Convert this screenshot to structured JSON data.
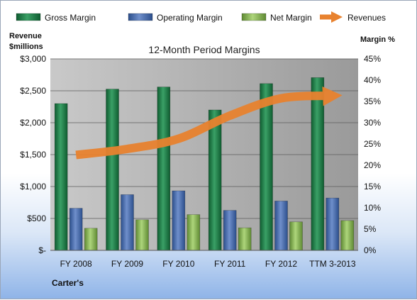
{
  "chart_data": {
    "type": "bar",
    "title": "12-Month Period Margins",
    "categories": [
      "FY 2008",
      "FY 2009",
      "FY 2010",
      "FY 2011",
      "FY 2012",
      "TTM 3-2013"
    ],
    "series": [
      {
        "name": "Gross Margin",
        "axis": "right",
        "values": [
          34.5,
          37.9,
          38.4,
          33.0,
          39.2,
          40.6
        ]
      },
      {
        "name": "Operating Margin",
        "axis": "right",
        "values": [
          9.9,
          13.1,
          14.0,
          9.4,
          11.6,
          12.3
        ]
      },
      {
        "name": "Net Margin",
        "axis": "right",
        "values": [
          5.2,
          7.2,
          8.4,
          5.3,
          6.7,
          7.0
        ]
      },
      {
        "name": "Revenues",
        "axis": "left",
        "type": "line",
        "values": [
          1495,
          1589,
          1749,
          2110,
          2382,
          2422
        ]
      }
    ],
    "y_left": {
      "label_line1": "Revenue",
      "label_line2": "$millions",
      "ylim": [
        0,
        3000
      ],
      "ticks": [
        0,
        500,
        1000,
        1500,
        2000,
        2500,
        3000
      ],
      "tick_labels": [
        "$-",
        "$500",
        "$1,000",
        "$1,500",
        "$2,000",
        "$2,500",
        "$3,000"
      ]
    },
    "y_right": {
      "label": "Margin %",
      "ylim": [
        0,
        45
      ],
      "ticks": [
        0,
        5,
        10,
        15,
        20,
        25,
        30,
        35,
        40,
        45
      ],
      "tick_labels": [
        "0%",
        "5%",
        "10%",
        "15%",
        "20%",
        "25%",
        "30%",
        "35%",
        "40%",
        "45%"
      ]
    },
    "grid": true,
    "legend_position": "top",
    "footer": "Carter's",
    "colors": {
      "Gross Margin": "#1f7a45",
      "Operating Margin": "#4a6fb0",
      "Net Margin": "#8db35a",
      "Revenues": "#e8822f"
    }
  }
}
